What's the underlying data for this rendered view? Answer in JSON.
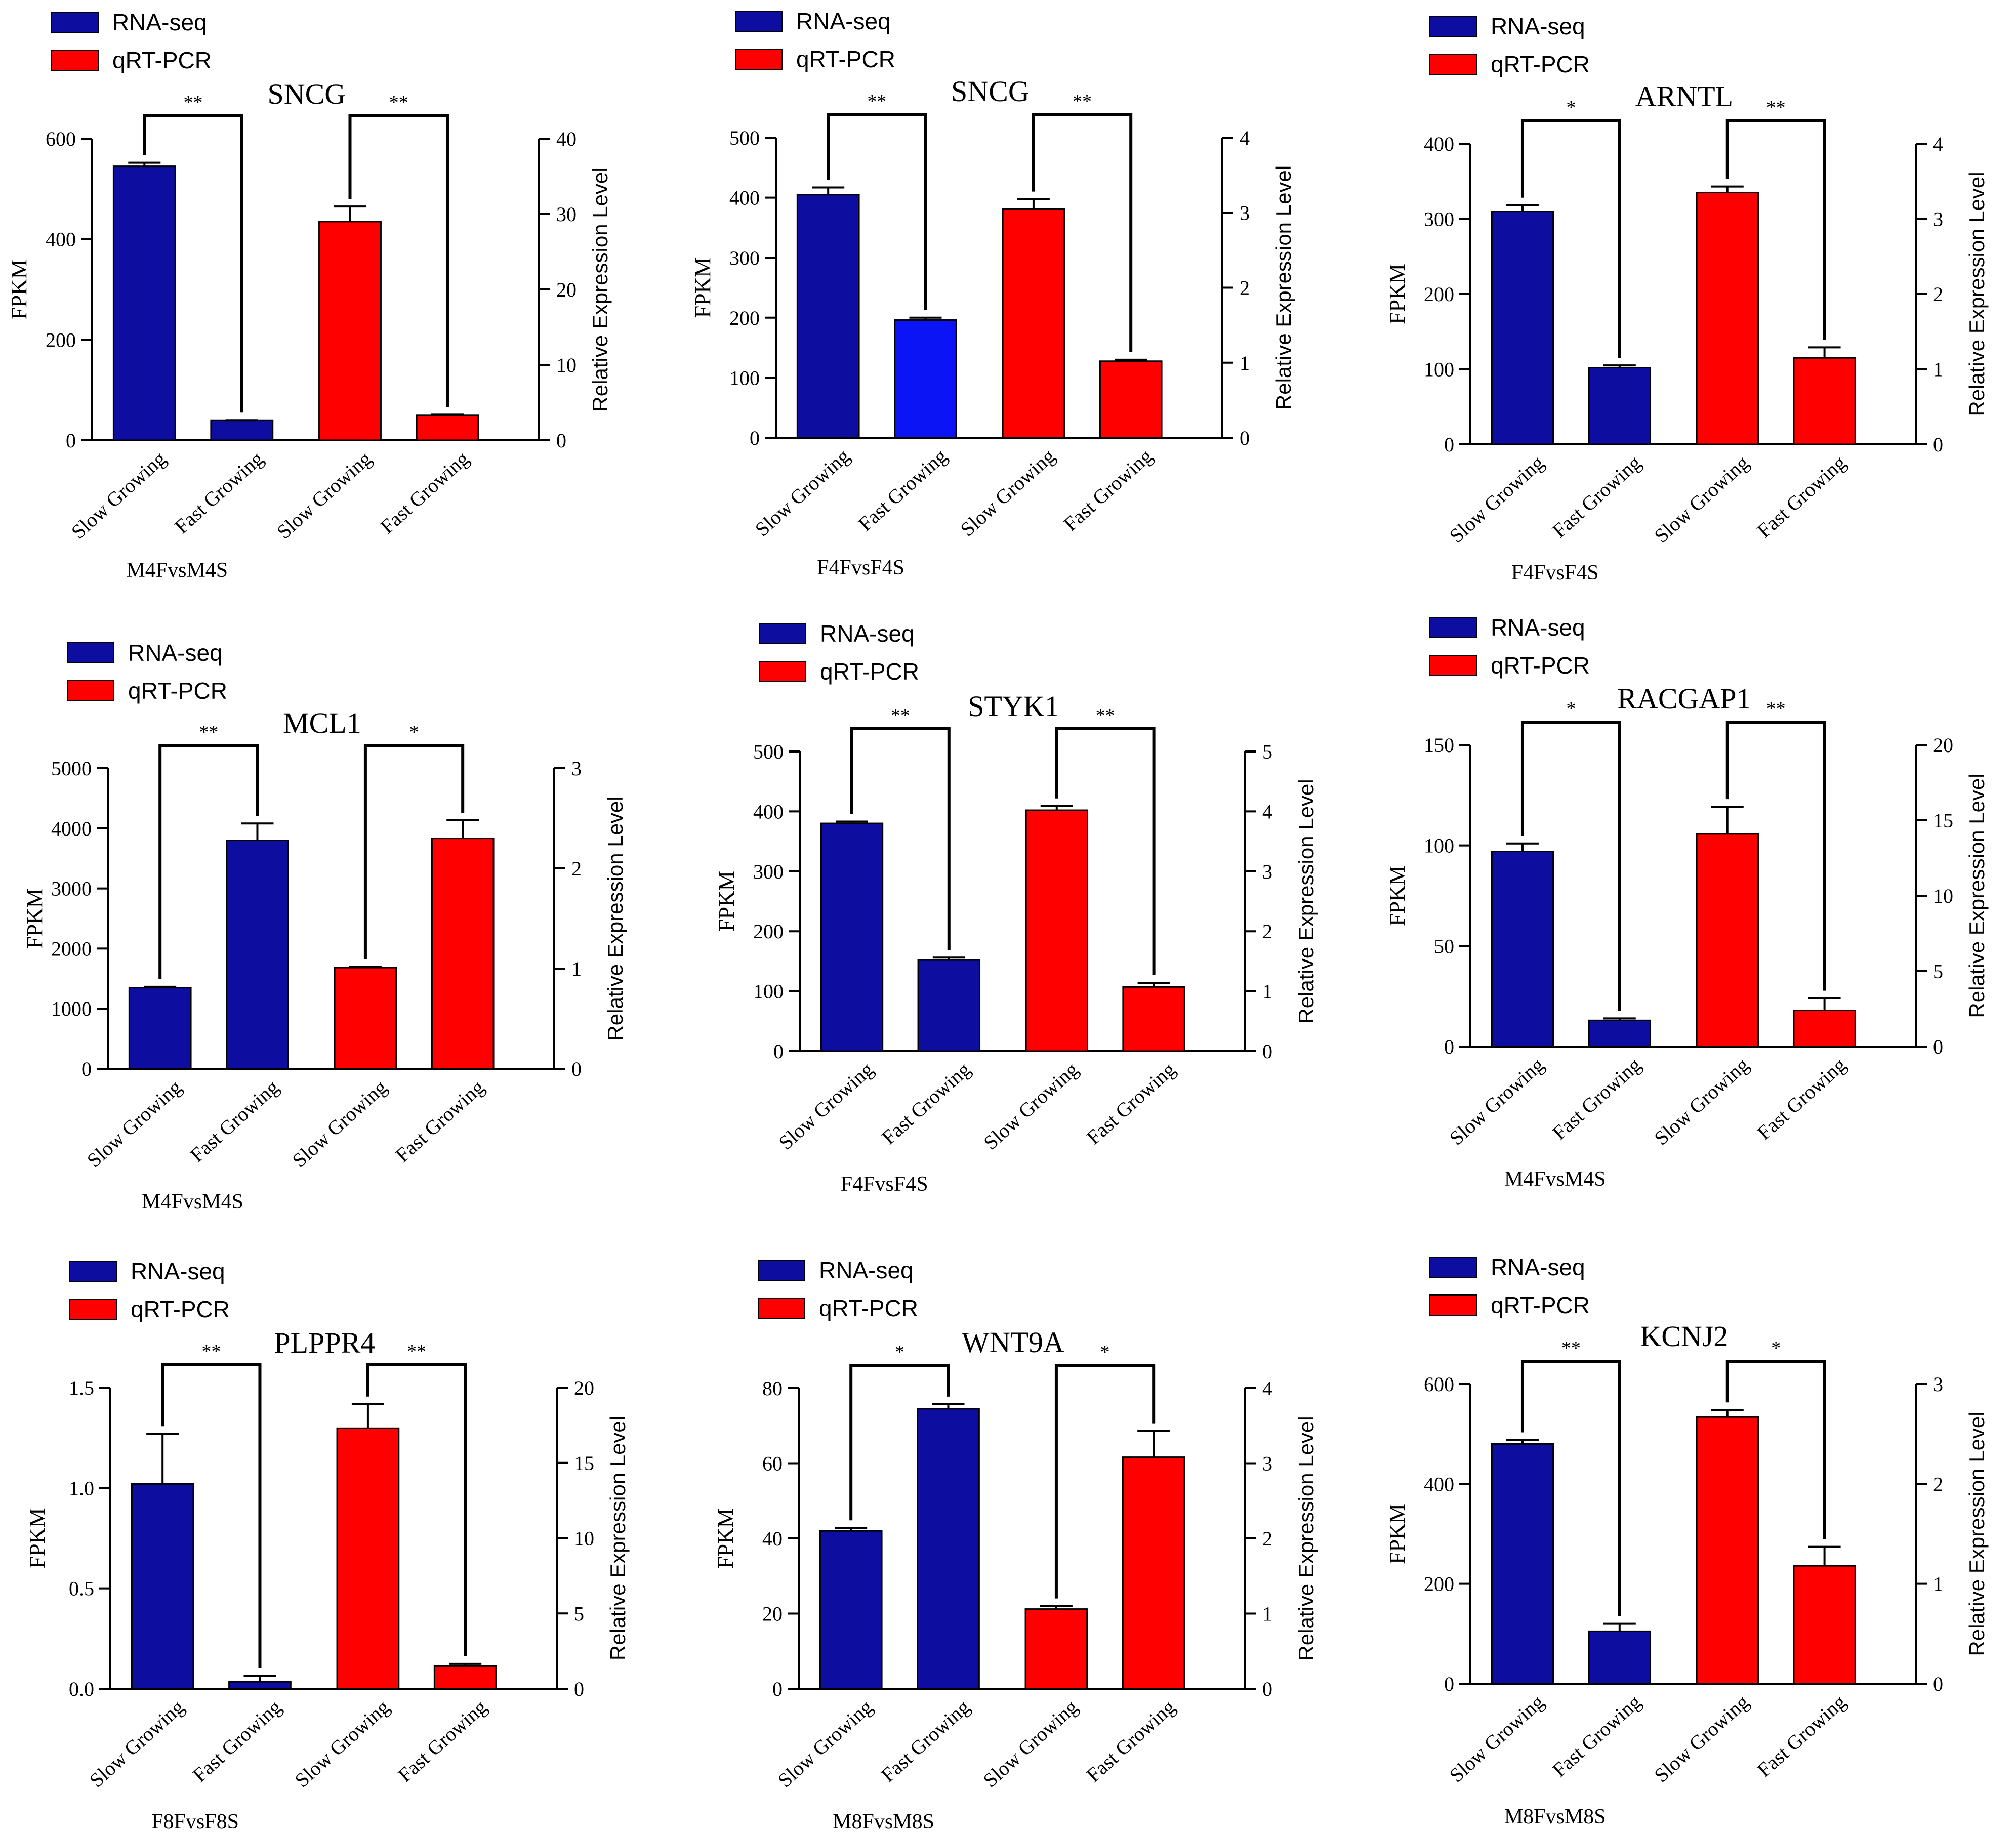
{
  "colors": {
    "rna": "#0d0da0",
    "rna_bright": "#0a14f5",
    "qpcr": "#ff0000",
    "axis": "#000000"
  },
  "chart_data": [
    {
      "type": "bar",
      "title": "SNCG",
      "xlabel": "M4FvsM4S",
      "ylabel": "FPKM",
      "ylabel2": "Relative Expression Level",
      "legend": [
        "RNA-seq",
        "qRT-PCR"
      ],
      "categories": [
        "Slow Growing",
        "Fast Growing"
      ],
      "left_ticks": [
        "0",
        "200",
        "400",
        "600"
      ],
      "ylim": [
        0,
        600
      ],
      "right_ticks": [
        "0",
        "10",
        "20",
        "30",
        "40"
      ],
      "ylim2": [
        0,
        40
      ],
      "series": [
        {
          "name": "RNA-seq",
          "values": [
            545,
            40
          ],
          "err": [
            7,
            0
          ]
        },
        {
          "name": "qRT-PCR",
          "values": [
            29,
            3.3
          ],
          "err": [
            2.0,
            0.1
          ]
        }
      ],
      "sig": [
        "**",
        "**"
      ]
    },
    {
      "type": "bar",
      "title": "SNCG",
      "xlabel": "F4FvsF4S",
      "ylabel": "FPKM",
      "ylabel2": "Relative Expression Level",
      "legend": [
        "RNA-seq",
        "qRT-PCR"
      ],
      "categories": [
        "Slow Growing",
        "Fast Growing"
      ],
      "left_ticks": [
        "0",
        "100",
        "200",
        "300",
        "400",
        "500"
      ],
      "ylim": [
        0,
        500
      ],
      "right_ticks": [
        "0",
        "1",
        "2",
        "3",
        "4"
      ],
      "ylim2": [
        0,
        4
      ],
      "series": [
        {
          "name": "RNA-seq",
          "values": [
            405,
            196
          ],
          "err": [
            12,
            4
          ]
        },
        {
          "name": "qRT-PCR",
          "values": [
            3.05,
            1.02
          ],
          "err": [
            0.13,
            0.02
          ]
        }
      ],
      "sig": [
        "**",
        "**"
      ]
    },
    {
      "type": "bar",
      "title": "ARNTL",
      "xlabel": "F4FvsF4S",
      "ylabel": "FPKM",
      "ylabel2": "Relative Expression Level",
      "legend": [
        "RNA-seq",
        "qRT-PCR"
      ],
      "categories": [
        "Slow Growing",
        "Fast Growing"
      ],
      "left_ticks": [
        "0",
        "100",
        "200",
        "300",
        "400"
      ],
      "ylim": [
        0,
        400
      ],
      "right_ticks": [
        "0",
        "1",
        "2",
        "3",
        "4"
      ],
      "ylim2": [
        0,
        4
      ],
      "series": [
        {
          "name": "RNA-seq",
          "values": [
            310,
            102
          ],
          "err": [
            8,
            3
          ]
        },
        {
          "name": "qRT-PCR",
          "values": [
            3.35,
            1.15
          ],
          "err": [
            0.08,
            0.14
          ]
        }
      ],
      "sig": [
        "*",
        "**"
      ]
    },
    {
      "type": "bar",
      "title": "MCL1",
      "xlabel": "M4FvsM4S",
      "ylabel": "FPKM",
      "ylabel2": "Relative Expression Level",
      "legend": [
        "RNA-seq",
        "qRT-PCR"
      ],
      "categories": [
        "Slow Growing",
        "Fast Growing"
      ],
      "left_ticks": [
        "0",
        "1000",
        "2000",
        "3000",
        "4000",
        "5000"
      ],
      "ylim": [
        0,
        5000
      ],
      "right_ticks": [
        "0",
        "1",
        "2",
        "3"
      ],
      "ylim2": [
        0,
        3
      ],
      "series": [
        {
          "name": "RNA-seq",
          "values": [
            1350,
            3800
          ],
          "err": [
            15,
            280
          ]
        },
        {
          "name": "qRT-PCR",
          "values": [
            1.01,
            2.3
          ],
          "err": [
            0.01,
            0.18
          ]
        }
      ],
      "sig": [
        "**",
        "*"
      ]
    },
    {
      "type": "bar",
      "title": "STYK1",
      "xlabel": "F4FvsF4S",
      "ylabel": "FPKM",
      "ylabel2": "Relative Expression Level",
      "legend": [
        "RNA-seq",
        "qRT-PCR"
      ],
      "categories": [
        "Slow Growing",
        "Fast Growing"
      ],
      "left_ticks": [
        "0",
        "100",
        "200",
        "300",
        "400",
        "500"
      ],
      "ylim": [
        0,
        500
      ],
      "right_ticks": [
        "0",
        "1",
        "2",
        "3",
        "4",
        "5"
      ],
      "ylim2": [
        0,
        5
      ],
      "series": [
        {
          "name": "RNA-seq",
          "values": [
            380,
            152
          ],
          "err": [
            3,
            4
          ]
        },
        {
          "name": "qRT-PCR",
          "values": [
            4.02,
            1.07
          ],
          "err": [
            0.07,
            0.07
          ]
        }
      ],
      "sig": [
        "**",
        "**"
      ]
    },
    {
      "type": "bar",
      "title": "RACGAP1",
      "xlabel": "M4FvsM4S",
      "ylabel": "FPKM",
      "ylabel2": "Relative Expression Level",
      "legend": [
        "RNA-seq",
        "qRT-PCR"
      ],
      "categories": [
        "Slow Growing",
        "Fast Growing"
      ],
      "left_ticks": [
        "0",
        "50",
        "100",
        "150"
      ],
      "ylim": [
        0,
        150
      ],
      "right_ticks": [
        "0",
        "5",
        "10",
        "15",
        "20"
      ],
      "ylim2": [
        0,
        20
      ],
      "series": [
        {
          "name": "RNA-seq",
          "values": [
            97,
            13
          ],
          "err": [
            4,
            1
          ]
        },
        {
          "name": "qRT-PCR",
          "values": [
            14.1,
            2.4
          ],
          "err": [
            1.8,
            0.8
          ]
        }
      ],
      "sig": [
        "*",
        "**"
      ]
    },
    {
      "type": "bar",
      "title": "PLPPR4",
      "xlabel": "F8FvsF8S",
      "ylabel": "FPKM",
      "ylabel2": "Relative Expression Level",
      "legend": [
        "RNA-seq",
        "qRT-PCR"
      ],
      "categories": [
        "Slow Growing",
        "Fast Growing"
      ],
      "left_ticks": [
        "0.0",
        "0.5",
        "1.0",
        "1.5"
      ],
      "ylim": [
        0,
        1.5
      ],
      "right_ticks": [
        "0",
        "5",
        "10",
        "15",
        "20"
      ],
      "ylim2": [
        0,
        20
      ],
      "series": [
        {
          "name": "RNA-seq",
          "values": [
            1.02,
            0.035
          ],
          "err": [
            0.25,
            0.03
          ]
        },
        {
          "name": "qRT-PCR",
          "values": [
            17.3,
            1.5
          ],
          "err": [
            1.6,
            0.15
          ]
        }
      ],
      "sig": [
        "**",
        "**"
      ]
    },
    {
      "type": "bar",
      "title": "WNT9A",
      "xlabel": "M8FvsM8S",
      "ylabel": "FPKM",
      "ylabel2": "Relative Expression Level",
      "legend": [
        "RNA-seq",
        "qRT-PCR"
      ],
      "categories": [
        "Slow Growing",
        "Fast Growing"
      ],
      "left_ticks": [
        "0",
        "20",
        "40",
        "60",
        "80"
      ],
      "ylim": [
        0,
        80
      ],
      "right_ticks": [
        "0",
        "1",
        "2",
        "3",
        "4"
      ],
      "ylim2": [
        0,
        4
      ],
      "series": [
        {
          "name": "RNA-seq",
          "values": [
            42,
            74.5
          ],
          "err": [
            0.8,
            1.2
          ]
        },
        {
          "name": "qRT-PCR",
          "values": [
            1.06,
            3.08
          ],
          "err": [
            0.04,
            0.35
          ]
        }
      ],
      "sig": [
        "*",
        "*"
      ]
    },
    {
      "type": "bar",
      "title": "KCNJ2",
      "xlabel": "M8FvsM8S",
      "ylabel": "FPKM",
      "ylabel2": "Relative Expression Level",
      "legend": [
        "RNA-seq",
        "qRT-PCR"
      ],
      "categories": [
        "Slow Growing",
        "Fast Growing"
      ],
      "left_ticks": [
        "0",
        "200",
        "400",
        "600"
      ],
      "ylim": [
        0,
        600
      ],
      "right_ticks": [
        "0",
        "1",
        "2",
        "3"
      ],
      "ylim2": [
        0,
        3
      ],
      "series": [
        {
          "name": "RNA-seq",
          "values": [
            480,
            105
          ],
          "err": [
            8,
            15
          ]
        },
        {
          "name": "qRT-PCR",
          "values": [
            2.67,
            1.18
          ],
          "err": [
            0.07,
            0.19
          ]
        }
      ],
      "sig": [
        "**",
        "*"
      ]
    }
  ]
}
